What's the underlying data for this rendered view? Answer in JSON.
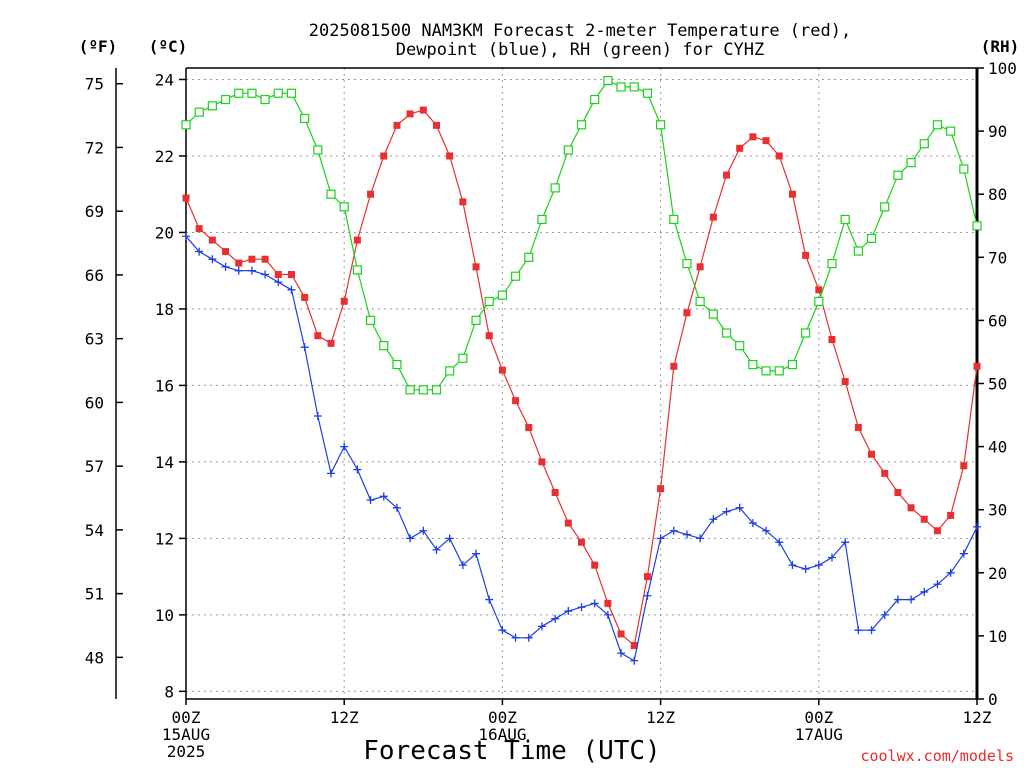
{
  "chart_data": {
    "type": "line",
    "title_line1": "2025081500 NAM3KM Forecast 2-meter Temperature (red),",
    "title_line2": "Dewpoint (blue), RH (green) for CYHZ",
    "xlabel": "Forecast Time (UTC)",
    "credit": "coolwx.com/models",
    "unit_labels": {
      "fahrenheit": "(ºF)",
      "celsius": "(ºC)",
      "rh": "(RH)"
    },
    "x_ticks": [
      {
        "hour": 0,
        "lines": [
          "00Z",
          "15AUG",
          "2025"
        ]
      },
      {
        "hour": 12,
        "lines": [
          "12Z"
        ]
      },
      {
        "hour": 24,
        "lines": [
          "00Z",
          "16AUG"
        ]
      },
      {
        "hour": 36,
        "lines": [
          "12Z"
        ]
      },
      {
        "hour": 48,
        "lines": [
          "00Z",
          "17AUG"
        ]
      },
      {
        "hour": 60,
        "lines": [
          "12Z"
        ]
      }
    ],
    "celsius_ticks": [
      8,
      10,
      12,
      14,
      16,
      18,
      20,
      22,
      24
    ],
    "fahrenheit_ticks": [
      48,
      51,
      54,
      57,
      60,
      63,
      66,
      69,
      72,
      75
    ],
    "rh_ticks": [
      0,
      10,
      20,
      30,
      40,
      50,
      60,
      70,
      80,
      90,
      100
    ],
    "xlim_hours": [
      0,
      60
    ],
    "ylim_celsius": [
      7.8,
      24.3
    ],
    "ylim_rh": [
      0,
      100
    ],
    "grid": true,
    "colors": {
      "temperature": "#e83030",
      "dewpoint": "#1f3ee0",
      "rh": "#1ad21a"
    },
    "series": [
      {
        "name": "Temperature (red)",
        "axis": "celsius",
        "x": [
          0,
          1,
          2,
          3,
          4,
          5,
          6,
          7,
          8,
          9,
          10,
          11,
          12,
          13,
          14,
          15,
          16,
          17,
          18,
          19,
          20,
          21,
          22,
          23,
          24,
          25,
          26,
          27,
          28,
          29,
          30,
          31,
          32,
          33,
          34,
          35,
          36,
          37,
          38,
          39,
          40,
          41,
          42,
          43,
          44,
          45,
          46,
          47,
          48,
          49,
          50,
          51,
          52,
          53,
          54,
          55,
          56,
          57,
          58,
          59,
          60
        ],
        "values": [
          20.9,
          20.1,
          19.8,
          19.5,
          19.2,
          19.3,
          19.3,
          18.9,
          18.9,
          18.3,
          17.3,
          17.1,
          18.2,
          19.8,
          21.0,
          22.0,
          22.8,
          23.1,
          23.2,
          22.8,
          22.0,
          20.8,
          19.1,
          17.3,
          16.4,
          15.6,
          14.9,
          14.0,
          13.2,
          12.4,
          11.9,
          11.3,
          10.3,
          9.5,
          9.2,
          11.0,
          13.3,
          16.5,
          17.9,
          19.1,
          20.4,
          21.5,
          22.2,
          22.5,
          22.4,
          22.0,
          21.0,
          19.4,
          18.5,
          17.2,
          16.1,
          14.9,
          14.2,
          13.7,
          13.2,
          12.8,
          12.5,
          12.2,
          12.6,
          13.9,
          16.5
        ]
      },
      {
        "name": "Dewpoint (blue)",
        "axis": "celsius",
        "x": [
          0,
          1,
          2,
          3,
          4,
          5,
          6,
          7,
          8,
          9,
          10,
          11,
          12,
          13,
          14,
          15,
          16,
          17,
          18,
          19,
          20,
          21,
          22,
          23,
          24,
          25,
          26,
          27,
          28,
          29,
          30,
          31,
          32,
          33,
          34,
          35,
          36,
          37,
          38,
          39,
          40,
          41,
          42,
          43,
          44,
          45,
          46,
          47,
          48,
          49,
          50,
          51,
          52,
          53,
          54,
          55,
          56,
          57,
          58,
          59,
          60
        ],
        "values": [
          19.9,
          19.5,
          19.3,
          19.1,
          19.0,
          19.0,
          18.9,
          18.7,
          18.5,
          17.0,
          15.2,
          13.7,
          14.4,
          13.8,
          13.0,
          13.1,
          12.8,
          12.0,
          12.2,
          11.7,
          12.0,
          11.3,
          11.6,
          10.4,
          9.6,
          9.4,
          9.4,
          9.7,
          9.9,
          10.1,
          10.2,
          10.3,
          10.0,
          9.0,
          8.8,
          10.5,
          12.0,
          12.2,
          12.1,
          12.0,
          12.5,
          12.7,
          12.8,
          12.4,
          12.2,
          11.9,
          11.3,
          11.2,
          11.3,
          11.5,
          11.9,
          9.6,
          9.6,
          10.0,
          10.4,
          10.4,
          10.6,
          10.8,
          11.1,
          11.6,
          12.3
        ]
      },
      {
        "name": "RH (green)",
        "axis": "rh",
        "x": [
          0,
          1,
          2,
          3,
          4,
          5,
          6,
          7,
          8,
          9,
          10,
          11,
          12,
          13,
          14,
          15,
          16,
          17,
          18,
          19,
          20,
          21,
          22,
          23,
          24,
          25,
          26,
          27,
          28,
          29,
          30,
          31,
          32,
          33,
          34,
          35,
          36,
          37,
          38,
          39,
          40,
          41,
          42,
          43,
          44,
          45,
          46,
          47,
          48,
          49,
          50,
          51,
          52,
          53,
          54,
          55,
          56,
          57,
          58,
          59,
          60
        ],
        "values": [
          91,
          93,
          94,
          95,
          96,
          96,
          95,
          96,
          96,
          92,
          87,
          80,
          78,
          68,
          60,
          56,
          53,
          49,
          49,
          49,
          52,
          54,
          60,
          63,
          64,
          67,
          70,
          76,
          81,
          87,
          91,
          95,
          98,
          97,
          97,
          96,
          91,
          76,
          69,
          63,
          61,
          58,
          56,
          53,
          52,
          52,
          53,
          58,
          63,
          69,
          76,
          71,
          73,
          78,
          83,
          85,
          88,
          91,
          90,
          84,
          75
        ]
      }
    ]
  }
}
